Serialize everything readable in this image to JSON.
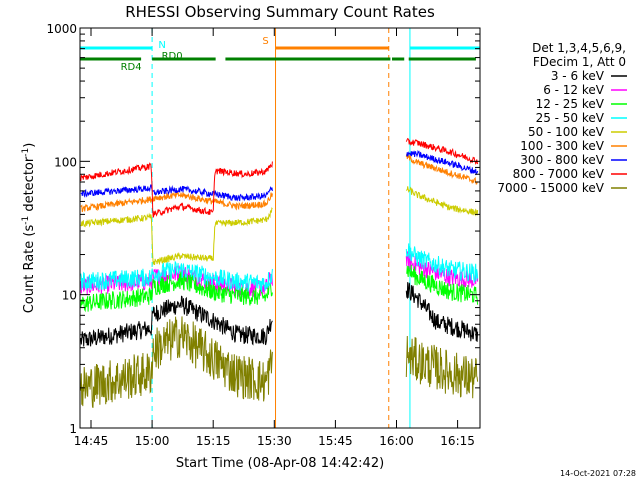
{
  "chart_data": {
    "type": "line",
    "title": "RHESSI Observing Summary Count Rates",
    "xlabel": "Start Time (08-Apr-08 14:42:42)",
    "ylabel_base": "Count Rate (s",
    "ylabel_exp1": "-1",
    "ylabel_mid": " detector",
    "ylabel_exp2": "-1",
    "ylabel_end": ")",
    "y_scale": "log",
    "ylim": [
      1,
      1000
    ],
    "xlim_minutes": [
      -2.7,
      95.5
    ],
    "x_ticks": [
      {
        "label": "14:45",
        "m": 0
      },
      {
        "label": "15:00",
        "m": 15
      },
      {
        "label": "15:15",
        "m": 30
      },
      {
        "label": "15:30",
        "m": 45
      },
      {
        "label": "15:45",
        "m": 60
      },
      {
        "label": "16:00",
        "m": 75
      },
      {
        "label": "16:15",
        "m": 90
      }
    ],
    "y_ticks": [
      {
        "label": "1",
        "v": 1
      },
      {
        "label": "10",
        "v": 10
      },
      {
        "label": "100",
        "v": 100
      },
      {
        "label": "1000",
        "v": 1000
      }
    ],
    "legend_header": [
      "Det 1,3,4,5,6,9,",
      "FDecim 1, Att 0"
    ],
    "series": [
      {
        "name": "3 - 6 keV",
        "color": "#000000",
        "gap": [
          44.6,
          77.4
        ],
        "points": [
          [
            -2.5,
            4.5
          ],
          [
            14.8,
            5.6
          ],
          [
            15.2,
            7.2
          ],
          [
            22,
            8.5
          ],
          [
            30,
            6.4
          ],
          [
            36,
            5.0
          ],
          [
            43,
            4.9
          ],
          [
            44.3,
            6.5
          ],
          [
            77.6,
            11
          ],
          [
            80,
            9.5
          ],
          [
            85,
            6.2
          ],
          [
            91,
            5.5
          ],
          [
            95,
            5.0
          ]
        ]
      },
      {
        "name": "6 - 12 keV",
        "color": "#ff00ff",
        "gap": [
          44.6,
          77.4
        ],
        "points": [
          [
            -2.5,
            11.5
          ],
          [
            14.8,
            12.6
          ],
          [
            15.2,
            13.5
          ],
          [
            22,
            14.5
          ],
          [
            30,
            12.2
          ],
          [
            36,
            11.2
          ],
          [
            43,
            11.3
          ],
          [
            44.3,
            13.5
          ],
          [
            77.6,
            18
          ],
          [
            80,
            16.5
          ],
          [
            88,
            13.5
          ],
          [
            95,
            12.8
          ]
        ]
      },
      {
        "name": "12 - 25 keV",
        "color": "#00ff00",
        "gap": [
          44.6,
          77.4
        ],
        "points": [
          [
            -2.5,
            8.5
          ],
          [
            14.8,
            9.8
          ],
          [
            15.2,
            11.5
          ],
          [
            22,
            12.8
          ],
          [
            30,
            10.5
          ],
          [
            36,
            9.8
          ],
          [
            43,
            9.6
          ],
          [
            44.3,
            11.5
          ],
          [
            77.6,
            15.5
          ],
          [
            80,
            13.5
          ],
          [
            88,
            10.6
          ],
          [
            95,
            9.8
          ]
        ]
      },
      {
        "name": "25 - 50 keV",
        "color": "#00ffff",
        "gap": [
          44.6,
          77.4
        ],
        "points": [
          [
            -2.5,
            12.5
          ],
          [
            14.8,
            13.5
          ],
          [
            15.2,
            14.5
          ],
          [
            22,
            15.5
          ],
          [
            30,
            13.5
          ],
          [
            36,
            12.5
          ],
          [
            43,
            12.2
          ],
          [
            44.3,
            14
          ],
          [
            77.6,
            22
          ],
          [
            80,
            19
          ],
          [
            88,
            15.5
          ],
          [
            95,
            14.5
          ]
        ]
      },
      {
        "name": "50 - 100 keV",
        "color": "#cccc00",
        "gap": [
          44.6,
          77.4
        ],
        "points": [
          [
            -2.5,
            34
          ],
          [
            14.8,
            38
          ],
          [
            15.2,
            17.5
          ],
          [
            22,
            19.5
          ],
          [
            30,
            18.5
          ],
          [
            30.4,
            34
          ],
          [
            38,
            35
          ],
          [
            43,
            36.5
          ],
          [
            44.3,
            42
          ],
          [
            77.6,
            62
          ],
          [
            80,
            56
          ],
          [
            88,
            45
          ],
          [
            95,
            41
          ]
        ]
      },
      {
        "name": "100 - 300 keV",
        "color": "#ff8000",
        "gap": [
          44.6,
          77.4
        ],
        "points": [
          [
            -2.5,
            44
          ],
          [
            14.8,
            52
          ],
          [
            15.2,
            53
          ],
          [
            22,
            56
          ],
          [
            30,
            50
          ],
          [
            36,
            46
          ],
          [
            43,
            48
          ],
          [
            44.3,
            56
          ],
          [
            77.6,
            108
          ],
          [
            80,
            98
          ],
          [
            88,
            82
          ],
          [
            95,
            70
          ]
        ]
      },
      {
        "name": "300 - 800 keV",
        "color": "#0000ff",
        "gap": [
          44.6,
          77.4
        ],
        "points": [
          [
            -2.5,
            57
          ],
          [
            14.8,
            63
          ],
          [
            15.2,
            58
          ],
          [
            22,
            62
          ],
          [
            30,
            57
          ],
          [
            36,
            53
          ],
          [
            43,
            55
          ],
          [
            44.3,
            62
          ],
          [
            77.6,
            115
          ],
          [
            80,
            113
          ],
          [
            88,
            97
          ],
          [
            95,
            83
          ]
        ]
      },
      {
        "name": "800 - 7000 keV",
        "color": "#ff0000",
        "gap": [
          44.6,
          77.4
        ],
        "points": [
          [
            -2.5,
            75
          ],
          [
            14.8,
            92
          ],
          [
            15.2,
            40
          ],
          [
            22,
            46
          ],
          [
            30,
            41
          ],
          [
            30.4,
            85
          ],
          [
            38,
            80
          ],
          [
            43,
            84
          ],
          [
            44.3,
            95
          ],
          [
            77.6,
            140
          ],
          [
            80,
            138
          ],
          [
            88,
            118
          ],
          [
            95,
            100
          ]
        ]
      },
      {
        "name": "7000 - 15000 keV",
        "color": "#808000",
        "gap": [
          44.6,
          77.4
        ],
        "points": [
          [
            -2.5,
            2.0
          ],
          [
            14.8,
            2.6
          ],
          [
            15.2,
            3.8
          ],
          [
            22,
            5.0
          ],
          [
            30,
            3.3
          ],
          [
            36,
            2.5
          ],
          [
            43,
            2.2
          ],
          [
            44.3,
            3.0
          ],
          [
            77.6,
            3.5
          ],
          [
            80,
            3.2
          ],
          [
            88,
            2.6
          ],
          [
            95,
            2.3
          ]
        ]
      }
    ],
    "state_bars": [
      {
        "label": "N",
        "color": "#00ffff",
        "level": "upper",
        "segments": [
          [
            -2.7,
            15.0
          ],
          [
            78.3,
            95.5
          ]
        ]
      },
      {
        "label": "S",
        "color": "#ff8000",
        "level": "upper",
        "segments": [
          [
            45.3,
            73.1
          ]
        ]
      },
      {
        "label": "RD0",
        "color": "#008000",
        "level": "lower",
        "segments": [
          [
            15.0,
            30.6
          ],
          [
            33.0,
            73.5
          ],
          [
            73.9,
            76.9
          ],
          [
            78.0,
            94.5
          ]
        ]
      },
      {
        "label": "RD4",
        "color": "#008000",
        "level": "lower",
        "segments": [
          [
            -2.7,
            12.3
          ]
        ]
      }
    ],
    "vertical_lines": [
      {
        "m": -2.7,
        "color": "#00ffff",
        "style": "solid"
      },
      {
        "m": 15.0,
        "color": "#00ffff",
        "style": "dashed"
      },
      {
        "m": 45.3,
        "color": "#ff8000",
        "style": "solid"
      },
      {
        "m": 73.1,
        "color": "#ff8000",
        "style": "dashed"
      },
      {
        "m": 78.3,
        "color": "#00ffff",
        "style": "solid"
      },
      {
        "m": 95.5,
        "color": "#00ffff",
        "style": "dashed"
      }
    ],
    "footer_date": "14-Oct-2021 07:28"
  }
}
